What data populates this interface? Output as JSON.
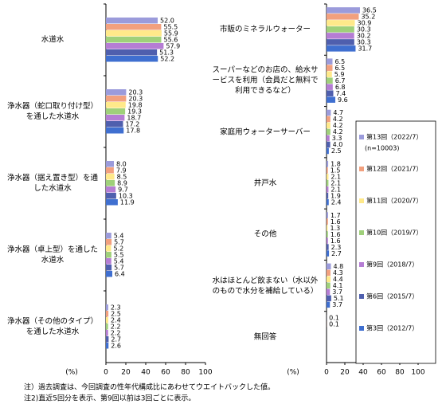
{
  "chart_data": [
    {
      "type": "bar",
      "orientation": "horizontal",
      "xlabel": "(%)",
      "categories": [
        "水道水",
        "浄水器（蛇口取り付け型）を通した水道水",
        "浄水器（据え置き型）を通した水道水",
        "浄水器（卓上型）を通した水道水",
        "浄水器（その他のタイプ）を通した水道水"
      ],
      "xlim": [
        0,
        100
      ],
      "xticks": [
        0,
        20,
        40,
        60,
        80,
        100
      ],
      "series": [
        {
          "color": "#9b9bdb",
          "values": [
            52.0,
            20.3,
            8.0,
            5.4,
            2.3
          ],
          "value_labels": [
            "52.0",
            "20.3",
            "8.0",
            "5.4",
            "2.3"
          ]
        },
        {
          "color": "#f2a07e",
          "values": [
            55.5,
            20.3,
            7.9,
            5.7,
            2.5
          ],
          "value_labels": [
            "55.5",
            "20.3",
            "7.9",
            "5.7",
            "2.5"
          ]
        },
        {
          "color": "#ffe98a",
          "values": [
            55.9,
            19.8,
            8.5,
            5.2,
            2.4
          ],
          "value_labels": [
            "55.9",
            "19.8",
            "8.5",
            "5.2",
            "2.4"
          ]
        },
        {
          "color": "#9fd07a",
          "values": [
            55.6,
            19.3,
            8.9,
            5.5,
            2.2
          ],
          "value_labels": [
            "55.6",
            "19.3",
            "8.9",
            "5.5",
            "2.2"
          ]
        },
        {
          "color": "#b57dd4",
          "values": [
            57.9,
            18.7,
            9.7,
            5.4,
            2.2
          ],
          "value_labels": [
            "57.9",
            "18.7",
            "9.7",
            "5.4",
            "2.2"
          ]
        },
        {
          "color": "#4f5fae",
          "values": [
            51.3,
            17.2,
            10.3,
            5.7,
            2.7
          ],
          "value_labels": [
            "51.3",
            "17.2",
            "10.3",
            "5.7",
            "2.7"
          ]
        },
        {
          "color": "#3f6fd0",
          "values": [
            52.2,
            17.8,
            11.9,
            6.4,
            2.6
          ],
          "value_labels": [
            "52.2",
            "17.8",
            "11.9",
            "6.4",
            "2.6"
          ]
        }
      ]
    },
    {
      "type": "bar",
      "orientation": "horizontal",
      "xlabel": "(%)",
      "categories": [
        "市販のミネラルウォーター",
        "スーパーなどのお店の、給水サービスを利用（会員だと無料で利用できるなど）",
        "家庭用ウォーターサーバー",
        "井戸水",
        "その他",
        "水はほとんど飲まない（水以外のもので水分を補給している）",
        "無回答"
      ],
      "xlim": [
        0,
        100
      ],
      "xticks": [
        0,
        20,
        40,
        60,
        80,
        100
      ],
      "legend_note": "(n=10003)",
      "series": [
        {
          "name": "第13回（2022/7）",
          "color": "#9b9bdb",
          "values": [
            36.5,
            6.5,
            4.7,
            1.8,
            1.7,
            4.8,
            0.1
          ],
          "value_labels": [
            "36.5",
            "6.5",
            "4.7",
            "1.8",
            "1.7",
            "4.8",
            "0.1"
          ]
        },
        {
          "name": "第12回（2021/7）",
          "color": "#f2a07e",
          "values": [
            35.2,
            6.5,
            4.2,
            1.5,
            1.6,
            4.3,
            0.1
          ],
          "value_labels": [
            "35.2",
            "6.5",
            "4.2",
            "1.5",
            "1.6",
            "4.3",
            "0.1"
          ]
        },
        {
          "name": "第11回（2020/7）",
          "color": "#ffe98a",
          "values": [
            30.9,
            5.9,
            4.2,
            2.1,
            1.3,
            4.4,
            null
          ],
          "value_labels": [
            "30.9",
            "5.9",
            "4.2",
            "2.1",
            "1.3",
            "4.4",
            null
          ]
        },
        {
          "name": "第10回（2019/7）",
          "color": "#9fd07a",
          "values": [
            30.3,
            6.7,
            4.2,
            2.1,
            1.6,
            4.1,
            null
          ],
          "value_labels": [
            "30.3",
            "6.7",
            "4.2",
            "2.1",
            "1.6",
            "4.1",
            null
          ]
        },
        {
          "name": "第9回（2018/7）",
          "color": "#b57dd4",
          "values": [
            30.2,
            6.8,
            3.3,
            2.1,
            1.6,
            3.7,
            null
          ],
          "value_labels": [
            "30.2",
            "6.8",
            "3.3",
            "2.1",
            "1.6",
            "3.7",
            null
          ]
        },
        {
          "name": "第6回（2015/7）",
          "color": "#4f5fae",
          "values": [
            30.3,
            7.4,
            4.0,
            1.9,
            2.3,
            5.1,
            null
          ],
          "value_labels": [
            "30.3",
            "7.4",
            "4.0",
            "1.9",
            "2.3",
            "5.1",
            null
          ]
        },
        {
          "name": "第3回（2012/7）",
          "color": "#3f6fd0",
          "values": [
            31.7,
            9.6,
            2.5,
            2.4,
            2.7,
            3.7,
            null
          ],
          "value_labels": [
            "31.7",
            "9.6",
            "2.5",
            "2.4",
            "2.7",
            "3.7",
            null
          ]
        }
      ]
    }
  ],
  "notes": [
    "注）過去調査は、今回調査の性年代構成比にあわせてウエイトバックした値。",
    "注2)直近5回分を表示、第9回以前は3回ごとに表示。"
  ]
}
